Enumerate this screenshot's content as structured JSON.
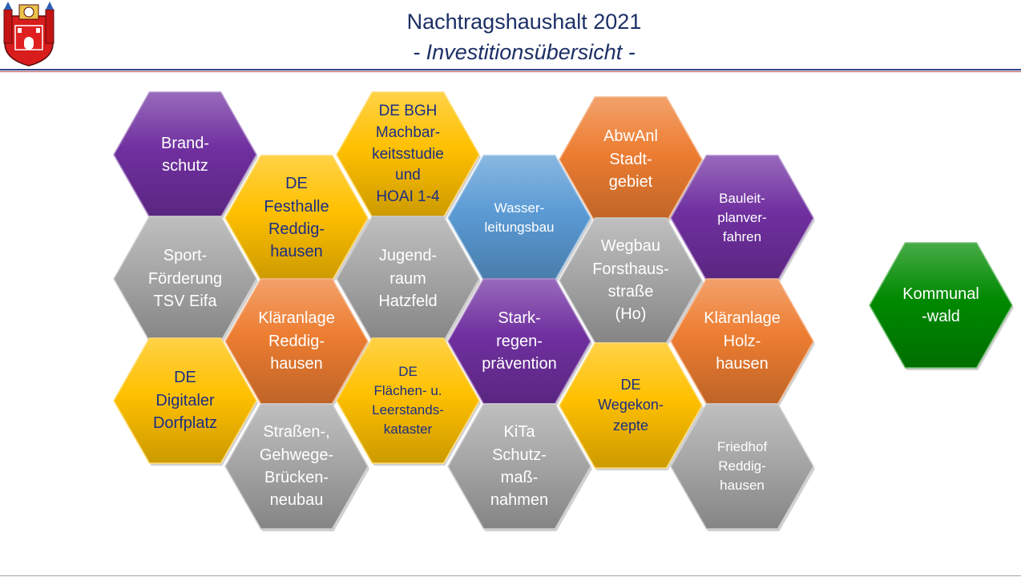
{
  "header": {
    "title": "Nachtragshaushalt 2021",
    "subtitle": "- Investitionsübersicht -"
  },
  "colors": {
    "purple": "#7030a0",
    "yellow": "#ffc000",
    "gray": "#a6a6a6",
    "blue": "#5b9bd5",
    "orange": "#ed7d31",
    "green": "#008a00",
    "text_light": "#ffffff",
    "text_dark": "#1c2f84"
  },
  "hexagons": [
    {
      "id": "brandschutz",
      "label": "Brand-\nschutz",
      "color": "purple"
    },
    {
      "id": "sportfoerderung",
      "label": "Sport-\nFörderung\nTSV Eifa",
      "color": "gray"
    },
    {
      "id": "digitaler-dorfplatz",
      "label": "DE\nDigitaler\nDorfplatz",
      "color": "yellow"
    },
    {
      "id": "festhalle",
      "label": "DE\nFesthalle\nReddig-\nhausen",
      "color": "yellow"
    },
    {
      "id": "klaeranlage-reddighausen",
      "label": "Kläranlage\nReddig-\nhausen",
      "color": "orange"
    },
    {
      "id": "strassen-gehwege",
      "label": "Straßen-,\nGehwege-\nBrücken-\nneubau",
      "color": "gray"
    },
    {
      "id": "bgh-machbarkeitsstudie",
      "label": "DE BGH\nMachbar-\nkeitsstudie\nund\nHOAI 1-4",
      "color": "yellow"
    },
    {
      "id": "jugendraum",
      "label": "Jugend-\nraum\nHatzfeld",
      "color": "gray"
    },
    {
      "id": "flaechenkataster",
      "label": "DE\nFlächen- u.\nLeerstands-\nkataster",
      "color": "yellow"
    },
    {
      "id": "wasserleitungsbau",
      "label": "Wasser-\nleitungsbau",
      "color": "blue"
    },
    {
      "id": "starkregenpraevention",
      "label": "Stark-\nregen-\nprävention",
      "color": "purple"
    },
    {
      "id": "kita-schutz",
      "label": "KiTa\nSchutz-\nmaß-\nnahmen",
      "color": "gray"
    },
    {
      "id": "abwanl-stadtgebiet",
      "label": "AbwAnl\nStadt-\ngebiet",
      "color": "orange"
    },
    {
      "id": "wegbau-forsthaus",
      "label": "Wegbau\nForsthaus-\nstraße\n(Ho)",
      "color": "gray"
    },
    {
      "id": "wegekonzepte",
      "label": "DE\nWegekon-\nzepte",
      "color": "yellow"
    },
    {
      "id": "bauleitplanverfahren",
      "label": "Bauleit-\nplanver-\nfahren",
      "color": "purple"
    },
    {
      "id": "klaeranlage-holzhausen",
      "label": "Kläranlage\nHolz-\nhausen",
      "color": "orange"
    },
    {
      "id": "friedhof-reddighausen",
      "label": "Friedhof\nReddig-\nhausen",
      "color": "gray"
    },
    {
      "id": "kommunalwald",
      "label": "Kommunal\n-wald",
      "color": "green"
    }
  ]
}
